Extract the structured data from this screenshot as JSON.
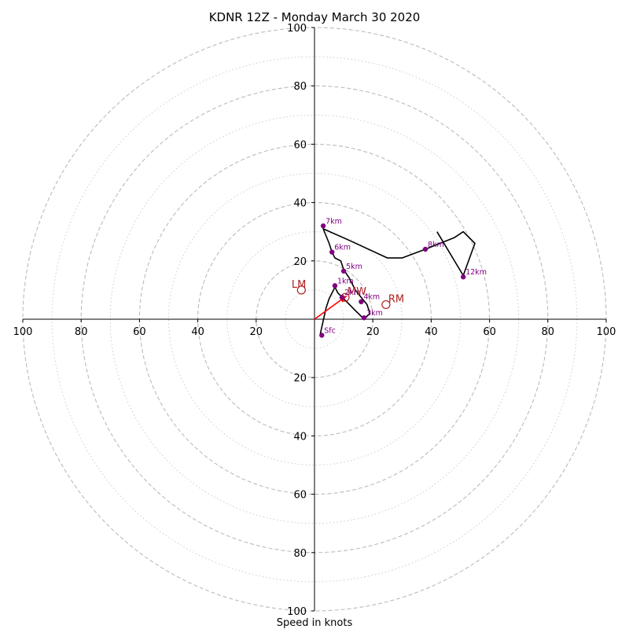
{
  "chart_data": {
    "type": "line",
    "title": "KDNR 12Z - Monday March 30 2020",
    "xlabel": "Speed in knots",
    "ylabel": "",
    "xlim": [
      -100,
      100
    ],
    "ylim": [
      -100,
      100
    ],
    "axis_ticks": [
      100,
      80,
      60,
      40,
      20,
      0,
      20,
      40,
      60,
      80,
      100
    ],
    "range_rings": {
      "major": [
        20,
        40,
        60,
        80,
        100
      ],
      "minor": [
        10,
        30,
        50,
        70,
        90
      ]
    },
    "colors": {
      "hodograph": "#000000",
      "points": "#800080",
      "labels": "#800080",
      "motion": "#b22222",
      "shear_vector": "#ff0000",
      "ring_major": "#bbbbbb",
      "ring_minor": "#cccccc"
    },
    "hodograph": {
      "u": [
        2,
        4,
        5,
        7,
        8,
        11,
        14,
        16,
        17,
        19,
        18,
        14,
        12,
        10,
        9,
        7,
        6,
        5,
        3,
        12,
        25,
        30,
        38,
        48,
        51,
        55,
        51,
        42
      ],
      "v": [
        -5,
        4,
        7,
        11,
        9,
        6,
        3,
        1,
        0,
        2,
        5,
        10,
        14,
        17,
        20,
        21,
        23,
        26,
        31,
        27,
        21,
        21,
        24,
        28,
        30,
        26,
        15,
        30
      ]
    },
    "height_points": [
      {
        "label": "Sfc",
        "u": 2.5,
        "v": -5.5
      },
      {
        "label": "1km",
        "u": 7,
        "v": 11.5
      },
      {
        "label": "2km",
        "u": 9.5,
        "v": 7.5
      },
      {
        "label": "3km",
        "u": 17,
        "v": 0.5
      },
      {
        "label": "4km",
        "u": 16,
        "v": 6
      },
      {
        "label": "5km",
        "u": 10,
        "v": 16.5
      },
      {
        "label": "6km",
        "u": 6,
        "v": 23
      },
      {
        "label": "7km",
        "u": 3,
        "v": 32
      },
      {
        "label": "8km",
        "u": 38,
        "v": 24
      },
      {
        "label": "12km",
        "u": 51,
        "v": 14.5
      }
    ],
    "storm_motion": [
      {
        "label": "LM",
        "u": -4.5,
        "v": 10
      },
      {
        "label": "MW",
        "u": 10.5,
        "v": 7.5
      },
      {
        "label": "RM",
        "u": 24.5,
        "v": 5
      }
    ],
    "shear_vector": {
      "from": [
        0,
        0
      ],
      "to": [
        11,
        8
      ]
    }
  }
}
